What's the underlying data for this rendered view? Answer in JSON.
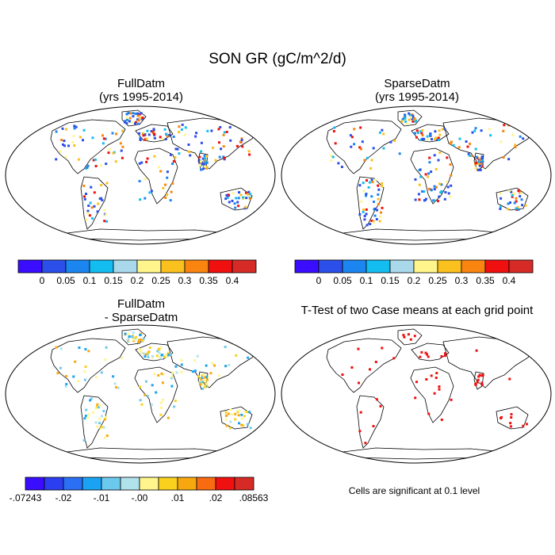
{
  "figure": {
    "title": "SON GR (gC/m^2/d)"
  },
  "panels": [
    {
      "title_line1": "FullDatm",
      "title_line2": "(yrs 1995-2014)"
    },
    {
      "title_line1": "SparseDatm",
      "title_line2": "(yrs 1995-2014)"
    },
    {
      "title_line1": "FullDatm",
      "title_line2": "- SparseDatm"
    },
    {
      "title_line1": "T-Test of two Case means at each grid point",
      "title_line2": ""
    }
  ],
  "colorbars": {
    "top": {
      "colors": [
        "#3a0dff",
        "#2b4fe8",
        "#1c86f0",
        "#14bdf0",
        "#a8d8ea",
        "#fff58c",
        "#fac01e",
        "#f98510",
        "#f0100f",
        "#d62a26"
      ],
      "labels": [
        "0",
        "0.05",
        "0.1",
        "0.15",
        "0.2",
        "0.25",
        "0.3",
        "0.35",
        "0.4"
      ]
    },
    "bottom": {
      "colors": [
        "#3a0dff",
        "#2b3ff0",
        "#2b6ff5",
        "#19a3f2",
        "#6cc9ee",
        "#b0e2ec",
        "#fff58c",
        "#fad21e",
        "#f8a80f",
        "#f86b10",
        "#f0100f",
        "#d62a26"
      ],
      "labels": [
        "-.07243",
        "-.02",
        "-.01",
        "-.00",
        ".01",
        ".02",
        ".08563"
      ]
    }
  },
  "significance_note": "Cells are significant at 0.1 level"
}
